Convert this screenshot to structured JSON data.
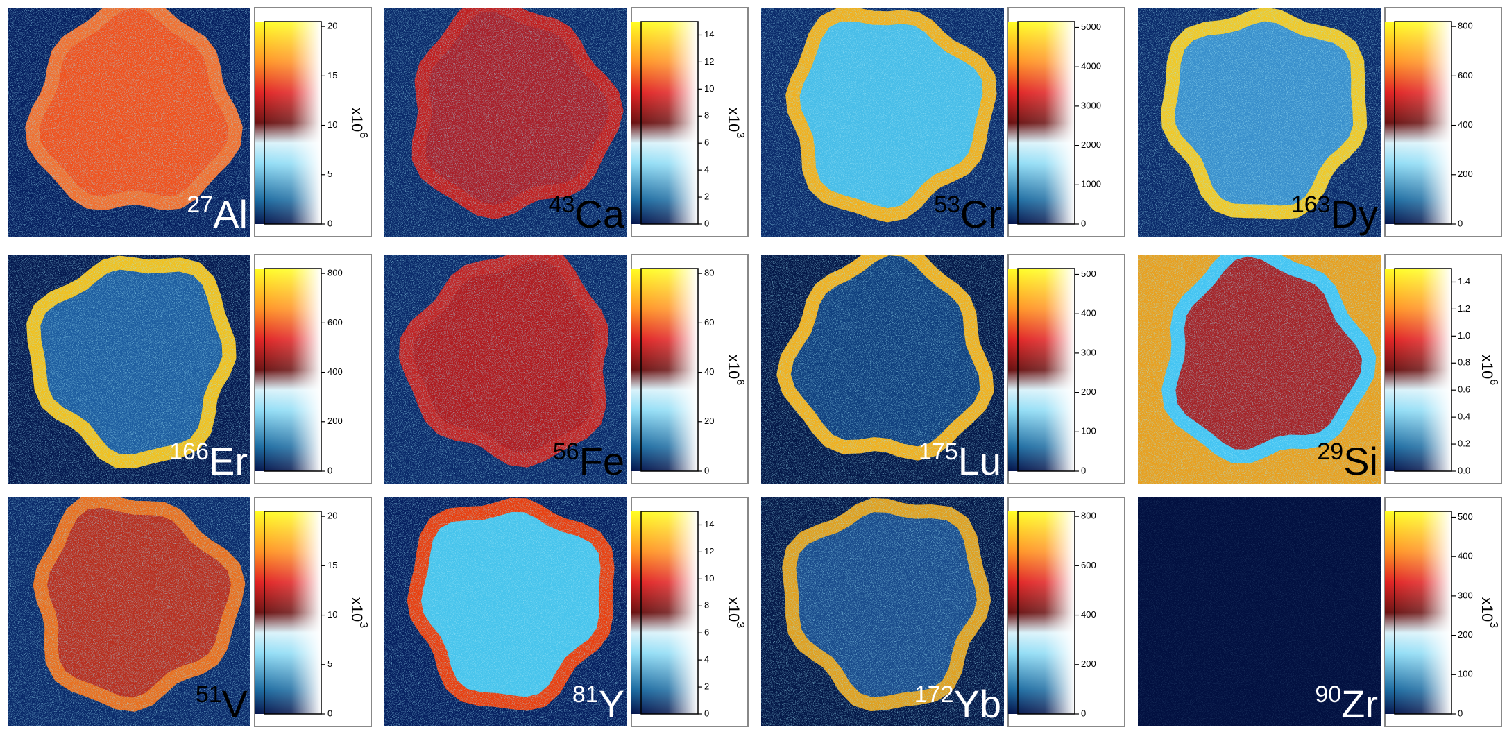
{
  "panels": [
    {
      "mass": 27,
      "symbol": "Al",
      "ticks": [
        0,
        5,
        10,
        15,
        20
      ],
      "lim": [
        0,
        20.5
      ],
      "multiplier": "x10",
      "exponent": "6"
    },
    {
      "mass": 43,
      "symbol": "Ca",
      "ticks": [
        0,
        2,
        4,
        6,
        8,
        10,
        12,
        14
      ],
      "lim": [
        0,
        15
      ],
      "multiplier": "x10",
      "exponent": "3"
    },
    {
      "mass": 53,
      "symbol": "Cr",
      "ticks": [
        0,
        1000,
        2000,
        3000,
        4000,
        5000
      ],
      "lim": [
        0,
        5150
      ]
    },
    {
      "mass": 163,
      "symbol": "Dy",
      "ticks": [
        0,
        200,
        400,
        600,
        800
      ],
      "lim": [
        0,
        820
      ]
    },
    {
      "mass": 166,
      "symbol": "Er",
      "ticks": [
        0,
        200,
        400,
        600,
        800
      ],
      "lim": [
        0,
        820
      ]
    },
    {
      "mass": 56,
      "symbol": "Fe",
      "ticks": [
        0,
        20,
        40,
        60,
        80
      ],
      "lim": [
        0,
        82
      ],
      "multiplier": "x10",
      "exponent": "6"
    },
    {
      "mass": 175,
      "symbol": "Lu",
      "ticks": [
        0,
        100,
        200,
        300,
        400,
        500
      ],
      "lim": [
        0,
        515
      ]
    },
    {
      "mass": 29,
      "symbol": "Si",
      "ticks": [
        {
          "value": 0,
          "label": "0.0"
        },
        0.2,
        0.4,
        0.6,
        0.8,
        {
          "value": 1,
          "label": "1.0"
        },
        1.2,
        1.4
      ],
      "lim": [
        0,
        1.5
      ],
      "multiplier": "x10",
      "exponent": "6"
    },
    {
      "mass": 51,
      "symbol": "V",
      "ticks": [
        0,
        5,
        10,
        15,
        20
      ],
      "lim": [
        0,
        20.5
      ],
      "multiplier": "x10",
      "exponent": "3"
    },
    {
      "mass": 81,
      "symbol": "Y",
      "ticks": [
        0,
        2,
        4,
        6,
        8,
        10,
        12,
        14
      ],
      "lim": [
        0,
        15
      ],
      "multiplier": "x10",
      "exponent": "3"
    },
    {
      "mass": 172,
      "symbol": "Yb",
      "ticks": [
        0,
        200,
        400,
        600,
        800
      ],
      "lim": [
        0,
        820
      ]
    },
    {
      "mass": 90,
      "symbol": "Zr",
      "ticks": [
        0,
        100,
        200,
        300,
        400,
        500
      ],
      "lim": [
        0,
        515
      ],
      "multiplier": "x10",
      "exponent": "3"
    }
  ]
}
